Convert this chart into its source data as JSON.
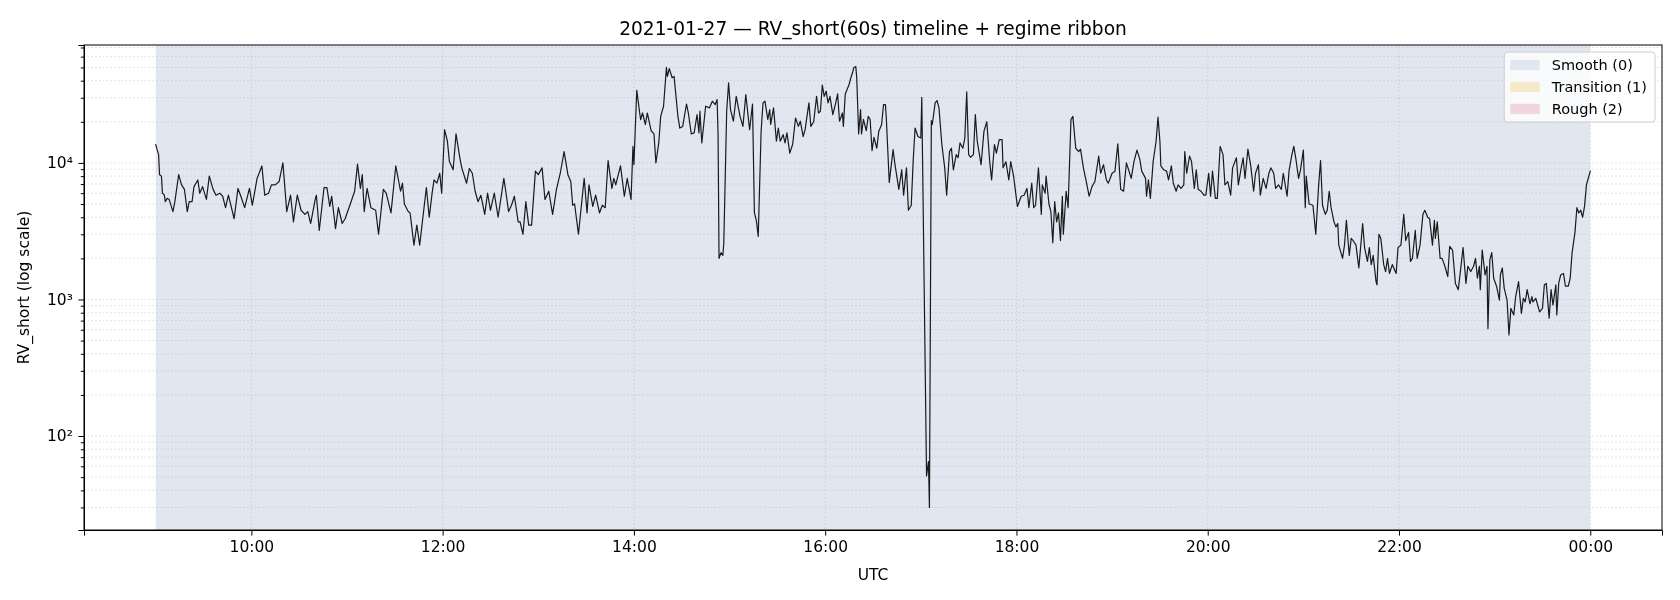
{
  "chart_data": {
    "type": "line",
    "title": "2021-01-27 — RV_short(60s) timeline + regime ribbon",
    "xlabel": "UTC",
    "ylabel": "RV_short (log scale)",
    "log": true,
    "grid": true,
    "legend": "top right",
    "xlim": [
      8.25,
      24.75
    ],
    "xticks": [
      {
        "value": 10,
        "label": "10:00"
      },
      {
        "value": 12,
        "label": "12:00"
      },
      {
        "value": 14,
        "label": "14:00"
      },
      {
        "value": 16,
        "label": "16:00"
      },
      {
        "value": 18,
        "label": "18:00"
      },
      {
        "value": 20,
        "label": "20:00"
      },
      {
        "value": 22,
        "label": "22:00"
      },
      {
        "value": 24,
        "label": "00:00"
      }
    ],
    "ylim": [
      20.5,
      73000
    ],
    "yticks": [
      {
        "value": 30,
        "label": null
      },
      {
        "value": 40,
        "label": null
      },
      {
        "value": 50,
        "label": null
      },
      {
        "value": 60,
        "label": null
      },
      {
        "value": 70,
        "label": null
      },
      {
        "value": 80,
        "label": null
      },
      {
        "value": 90,
        "label": null
      },
      {
        "value": 100,
        "label": "10²"
      },
      {
        "value": 200,
        "label": null
      },
      {
        "value": 300,
        "label": null
      },
      {
        "value": 400,
        "label": null
      },
      {
        "value": 500,
        "label": null
      },
      {
        "value": 600,
        "label": null
      },
      {
        "value": 700,
        "label": null
      },
      {
        "value": 800,
        "label": null
      },
      {
        "value": 900,
        "label": null
      },
      {
        "value": 1000,
        "label": "10³"
      },
      {
        "value": 2000,
        "label": null
      },
      {
        "value": 3000,
        "label": null
      },
      {
        "value": 4000,
        "label": null
      },
      {
        "value": 5000,
        "label": null
      },
      {
        "value": 6000,
        "label": null
      },
      {
        "value": 7000,
        "label": null
      },
      {
        "value": 8000,
        "label": null
      },
      {
        "value": 9000,
        "label": null
      },
      {
        "value": 10000,
        "label": "10⁴"
      },
      {
        "value": 20000,
        "label": null
      },
      {
        "value": 30000,
        "label": null
      },
      {
        "value": 40000,
        "label": null
      },
      {
        "value": 50000,
        "label": null
      },
      {
        "value": 60000,
        "label": null
      },
      {
        "value": 70000,
        "label": null
      }
    ],
    "bands": [
      {
        "axis": "x",
        "from": 9,
        "to": 24,
        "label": "Smooth (0)",
        "color": "#e1e7f1"
      }
    ],
    "x": [
      9.0,
      9.03,
      9.04,
      9.06,
      9.07,
      9.09,
      9.1,
      9.12,
      9.14,
      9.18,
      9.2,
      9.24,
      9.27,
      9.3,
      9.33,
      9.35,
      9.38,
      9.4,
      9.44,
      9.46,
      9.49,
      9.53,
      9.56,
      9.6,
      9.63,
      9.67,
      9.7,
      9.73,
      9.76,
      9.82,
      9.86,
      9.89,
      9.93,
      9.98,
      10.01,
      10.06,
      10.11,
      10.14,
      10.18,
      10.21,
      10.25,
      10.29,
      10.33,
      10.37,
      10.41,
      10.44,
      10.48,
      10.52,
      10.56,
      10.59,
      10.62,
      10.67,
      10.68,
      10.71,
      10.76,
      10.79,
      10.82,
      10.84,
      10.88,
      10.91,
      10.95,
      10.98,
      11.03,
      11.08,
      11.11,
      11.14,
      11.16,
      11.18,
      11.21,
      11.25,
      11.3,
      11.33,
      11.38,
      11.41,
      11.46,
      11.51,
      11.56,
      11.58,
      11.6,
      11.64,
      11.66,
      11.7,
      11.73,
      11.76,
      11.79,
      11.83,
      11.86,
      11.89,
      11.91,
      11.94,
      11.97,
      11.99,
      12.02,
      12.05,
      12.07,
      12.11,
      12.14,
      12.18,
      12.2,
      12.25,
      12.28,
      12.31,
      12.34,
      12.37,
      12.4,
      12.44,
      12.47,
      12.5,
      12.54,
      12.58,
      12.64,
      12.66,
      12.69,
      12.72,
      12.75,
      12.79,
      12.81,
      12.84,
      12.87,
      12.9,
      12.93,
      12.97,
      13.0,
      13.04,
      13.07,
      13.11,
      13.15,
      13.19,
      13.23,
      13.27,
      13.31,
      13.34,
      13.36,
      13.38,
      13.42,
      13.48,
      13.51,
      13.53,
      13.57,
      13.6,
      13.64,
      13.67,
      13.7,
      13.73,
      13.77,
      13.79,
      13.81,
      13.86,
      13.9,
      13.93,
      13.97,
      13.99,
      14.0,
      14.03,
      14.07,
      14.09,
      14.12,
      14.14,
      14.18,
      14.21,
      14.23,
      14.26,
      14.28,
      14.31,
      14.34,
      14.35,
      14.37,
      14.4,
      14.42,
      14.46,
      14.48,
      14.51,
      14.55,
      14.57,
      14.6,
      14.63,
      14.66,
      14.68,
      14.69,
      14.71,
      14.75,
      14.79,
      14.82,
      14.85,
      14.87,
      14.88,
      14.89,
      14.91,
      14.93,
      14.94,
      14.97,
      14.99,
      15.01,
      15.04,
      15.07,
      15.11,
      15.14,
      15.17,
      15.21,
      15.24,
      15.26,
      15.28,
      15.3,
      15.33,
      15.35,
      15.37,
      15.4,
      15.42,
      15.43,
      15.46,
      15.49,
      15.51,
      15.53,
      15.56,
      15.58,
      15.6,
      15.63,
      15.66,
      15.69,
      15.72,
      15.74,
      15.77,
      15.79,
      15.83,
      15.85,
      15.88,
      15.91,
      15.93,
      15.95,
      15.97,
      15.99,
      16.01,
      16.03,
      16.05,
      16.08,
      16.11,
      16.13,
      16.15,
      16.18,
      16.19,
      16.21,
      16.25,
      16.27,
      16.29,
      16.3,
      16.32,
      16.33,
      16.35,
      16.37,
      16.38,
      16.4,
      16.43,
      16.45,
      16.47,
      16.49,
      16.51,
      16.54,
      16.56,
      16.59,
      16.61,
      16.63,
      16.64,
      16.67,
      16.71,
      16.73,
      16.77,
      16.8,
      16.82,
      16.85,
      16.87,
      16.9,
      16.92,
      16.94,
      16.97,
      17.0,
      17.01,
      17.06,
      17.08,
      17.09,
      17.11,
      17.12,
      17.15,
      17.17,
      17.19,
      17.22,
      17.25,
      17.27,
      17.3,
      17.32,
      17.34,
      17.37,
      17.39,
      17.41,
      17.44,
      17.46,
      17.48,
      17.5,
      17.52,
      17.55,
      17.57,
      17.59,
      17.63,
      17.66,
      17.69,
      17.72,
      17.74,
      17.77,
      17.79,
      17.82,
      17.85,
      17.86,
      17.89,
      17.92,
      17.94,
      17.97,
      18.01,
      18.05,
      18.08,
      18.11,
      18.13,
      18.16,
      18.18,
      18.2,
      18.23,
      18.26,
      18.27,
      18.3,
      18.31,
      18.34,
      18.36,
      18.38,
      18.4,
      18.42,
      18.44,
      18.46,
      18.48,
      18.49,
      18.52,
      18.54,
      18.57,
      18.59,
      18.62,
      18.65,
      18.67,
      18.7,
      18.73,
      18.76,
      18.79,
      18.82,
      18.86,
      18.88,
      18.91,
      18.94,
      18.96,
      19.0,
      19.03,
      19.06,
      19.09,
      19.12,
      19.15,
      19.2,
      19.23,
      19.26,
      19.29,
      19.31,
      19.35,
      19.36,
      19.38,
      19.4,
      19.43,
      19.46,
      19.48,
      19.5,
      19.51,
      19.54,
      19.57,
      19.59,
      19.62,
      19.64,
      19.67,
      19.69,
      19.72,
      19.75,
      19.76,
      19.78,
      19.81,
      19.83,
      19.86,
      19.88,
      19.9,
      19.93,
      19.96,
      19.98,
      20.01,
      20.03,
      20.05,
      20.08,
      20.1,
      20.13,
      20.16,
      20.18,
      20.21,
      20.24,
      20.26,
      20.3,
      20.32,
      20.35,
      20.37,
      20.39,
      20.42,
      20.45,
      20.48,
      20.5,
      20.53,
      20.55,
      20.58,
      20.61,
      20.64,
      20.66,
      20.69,
      20.71,
      20.74,
      20.77,
      20.79,
      20.83,
      20.85,
      20.88,
      20.9,
      20.92,
      20.95,
      20.97,
      21.0,
      21.02,
      21.03,
      21.06,
      21.1,
      21.13,
      21.16,
      21.18,
      21.2,
      21.23,
      21.25,
      21.27,
      21.29,
      21.32,
      21.34,
      21.36,
      21.37,
      21.41,
      21.43,
      21.45,
      21.48,
      21.5,
      21.52,
      21.55,
      21.58,
      21.62,
      21.64,
      21.67,
      21.69,
      21.71,
      21.73,
      21.76,
      21.77,
      21.79,
      21.81,
      21.84,
      21.86,
      21.88,
      21.9,
      21.93,
      21.97,
      21.99,
      22.02,
      22.05,
      22.07,
      22.1,
      22.12,
      22.14,
      22.17,
      22.19,
      22.22,
      22.25,
      22.27,
      22.3,
      22.32,
      22.35,
      22.37,
      22.38,
      22.4,
      22.43,
      22.45,
      22.48,
      22.51,
      22.53,
      22.56,
      22.59,
      22.62,
      22.65,
      22.67,
      22.7,
      22.72,
      22.75,
      22.78,
      22.8,
      22.82,
      22.84,
      22.85,
      22.87,
      22.9,
      22.92,
      22.93,
      22.95,
      22.97,
      22.99,
      23.02,
      23.05,
      23.06,
      23.08,
      23.1,
      23.13,
      23.15,
      23.17,
      23.2,
      23.22,
      23.25,
      23.28,
      23.3,
      23.32,
      23.34,
      23.37,
      23.39,
      23.4,
      23.43,
      23.45,
      23.47,
      23.5,
      23.52,
      23.54,
      23.57,
      23.59,
      23.61,
      23.64,
      23.65,
      23.67,
      23.69,
      23.72,
      23.74,
      23.77,
      23.79,
      23.81,
      23.84,
      23.86,
      23.88,
      23.9,
      23.92,
      23.94,
      23.96,
      24.0
    ],
    "series": [
      {
        "color": "#1a1a1a",
        "values": [
          13600,
          11500,
          8200,
          8000,
          6000,
          5800,
          5200,
          5500,
          5400,
          4400,
          5200,
          8200,
          6900,
          6400,
          4400,
          5200,
          5200,
          6700,
          7500,
          6000,
          6700,
          5400,
          8000,
          6400,
          5800,
          6000,
          5700,
          4700,
          5800,
          3900,
          6500,
          5700,
          4700,
          6500,
          4900,
          7700,
          9500,
          5800,
          6000,
          6900,
          6900,
          7300,
          10000,
          4400,
          5800,
          3700,
          5800,
          4500,
          4200,
          4400,
          3600,
          5500,
          5800,
          3200,
          6600,
          6600,
          4800,
          5700,
          3300,
          4700,
          3600,
          3900,
          4900,
          6200,
          9800,
          6500,
          8200,
          4400,
          6500,
          4700,
          4500,
          3000,
          6400,
          6000,
          4300,
          9500,
          6200,
          7100,
          5000,
          4400,
          4300,
          2500,
          3500,
          2500,
          3800,
          6600,
          4000,
          6000,
          7500,
          7100,
          8400,
          6000,
          17500,
          14400,
          10300,
          8900,
          16300,
          10900,
          9200,
          7100,
          9100,
          8400,
          6200,
          5200,
          5800,
          4200,
          6000,
          4500,
          6000,
          4000,
          7700,
          6200,
          4400,
          4900,
          5700,
          3700,
          3700,
          3000,
          5200,
          3500,
          3500,
          8700,
          8200,
          9200,
          5400,
          6200,
          4200,
          6400,
          8400,
          12100,
          8200,
          7300,
          4900,
          5000,
          3000,
          7700,
          4300,
          6900,
          4800,
          5800,
          4300,
          4900,
          4700,
          10400,
          6500,
          7700,
          6900,
          9500,
          5700,
          7700,
          5400,
          13200,
          9700,
          34000,
          20700,
          23200,
          19100,
          23200,
          17200,
          16300,
          10000,
          14000,
          21900,
          26000,
          50000,
          43000,
          49000,
          42000,
          43000,
          22000,
          18000,
          18500,
          27000,
          23000,
          16300,
          16600,
          22600,
          16600,
          23900,
          14000,
          26000,
          25300,
          28300,
          26700,
          29100,
          16100,
          2000,
          2200,
          2100,
          2600,
          23900,
          38500,
          24600,
          20200,
          30700,
          21900,
          18500,
          31600,
          17500,
          27000,
          4300,
          3800,
          2900,
          17000,
          27500,
          28300,
          20800,
          24600,
          19100,
          25300,
          14400,
          18000,
          14400,
          16100,
          14000,
          16600,
          11800,
          13700,
          21300,
          18500,
          20200,
          15600,
          17500,
          27500,
          18500,
          20000,
          30700,
          23200,
          23900,
          37100,
          30700,
          33500,
          27500,
          30700,
          22600,
          27500,
          32000,
          20200,
          23200,
          18500,
          32000,
          37500,
          42400,
          46900,
          50000,
          50800,
          41900,
          16300,
          24600,
          16300,
          20800,
          17200,
          21900,
          20800,
          12300,
          15400,
          12800,
          17000,
          19100,
          26700,
          26700,
          20800,
          7200,
          12500,
          9700,
          6400,
          8900,
          5800,
          9200,
          4500,
          4900,
          10300,
          18000,
          15600,
          15200,
          30200,
          51,
          65,
          30,
          20400,
          19100,
          27500,
          28600,
          25300,
          13600,
          9200,
          5800,
          12100,
          12800,
          8900,
          11500,
          10900,
          14000,
          12800,
          15200,
          33100,
          11500,
          11000,
          11500,
          22600,
          14400,
          9700,
          17000,
          20000,
          10300,
          7500,
          13600,
          11800,
          14800,
          14800,
          9200,
          10200,
          7500,
          10200,
          8000,
          4800,
          5700,
          5800,
          6500,
          4700,
          7100,
          4700,
          4900,
          9200,
          4200,
          6900,
          6000,
          8000,
          5000,
          4400,
          2600,
          5200,
          3700,
          4300,
          2700,
          5700,
          3000,
          6200,
          4700,
          20800,
          21900,
          12800,
          12100,
          12600,
          9200,
          7300,
          5700,
          6700,
          7300,
          11200,
          8400,
          9700,
          7500,
          7100,
          8400,
          8700,
          13800,
          6400,
          6200,
          10000,
          7700,
          10300,
          12400,
          10600,
          8700,
          7700,
          5700,
          7500,
          5500,
          10300,
          14400,
          21600,
          14400,
          9500,
          8900,
          8700,
          7500,
          9500,
          7100,
          6200,
          6900,
          6500,
          6900,
          12100,
          8400,
          11200,
          10300,
          6500,
          8900,
          6400,
          6200,
          5800,
          5800,
          8400,
          5700,
          8700,
          5500,
          5500,
          13200,
          11500,
          6900,
          7300,
          5800,
          9200,
          10900,
          6900,
          9200,
          10900,
          7700,
          12600,
          9500,
          6200,
          8400,
          9700,
          5800,
          7700,
          6500,
          8400,
          9200,
          8400,
          6500,
          6900,
          6400,
          8400,
          5700,
          8700,
          11500,
          13200,
          10900,
          7700,
          8900,
          12400,
          4700,
          8000,
          5000,
          4900,
          3000,
          6900,
          10400,
          4900,
          4200,
          4500,
          6200,
          4700,
          3700,
          3400,
          3600,
          2500,
          2000,
          2500,
          3800,
          2100,
          2800,
          2700,
          2500,
          1700,
          3600,
          2400,
          1900,
          2400,
          1800,
          2100,
          1350,
          1280,
          3000,
          2800,
          1800,
          1600,
          2000,
          1550,
          1800,
          1550,
          2400,
          2500,
          4200,
          2700,
          3100,
          1900,
          2000,
          3200,
          2000,
          2500,
          4200,
          4500,
          4000,
          3900,
          2500,
          3800,
          2800,
          3700,
          2000,
          2000,
          1750,
          1470,
          2450,
          2300,
          1310,
          1180,
          1800,
          2400,
          1310,
          1750,
          1600,
          1750,
          2000,
          1430,
          1750,
          1180,
          2300,
          1510,
          1750,
          610,
          1950,
          2200,
          1430,
          1250,
          990,
          1510,
          1700,
          1210,
          990,
          550,
          860,
          770,
          1050,
          1350,
          790,
          1020,
          960,
          1180,
          930,
          1050,
          960,
          1020,
          910,
          810,
          860,
          1280,
          1310,
          730,
          1180,
          910,
          1280,
          770,
          1310,
          1510,
          1550,
          1250,
          1250,
          1430,
          2200,
          3100,
          4700,
          4300,
          4500,
          4000,
          4800,
          6900,
          8700
        ]
      },
      {
        "type": "area",
        "name": "Transition (1)",
        "color": "#f6e9cb",
        "values": [
          null,
          null,
          null,
          null,
          null,
          null,
          null,
          null,
          null,
          null,
          null,
          null,
          null,
          null,
          null,
          null,
          null,
          null,
          null,
          null,
          null,
          null,
          null,
          null,
          null,
          null,
          null,
          null,
          null,
          null,
          null,
          null,
          null,
          null,
          null,
          null,
          null,
          null,
          null,
          null,
          null,
          null,
          null,
          null,
          null,
          null,
          null,
          null,
          null,
          null,
          null,
          null,
          null,
          null,
          null,
          null,
          null,
          null,
          null,
          null,
          null,
          null,
          null,
          null,
          null,
          null,
          null,
          null,
          null,
          null,
          null,
          null,
          null,
          null,
          null,
          null,
          null,
          null,
          null,
          null,
          null,
          null,
          null,
          null,
          null,
          null,
          null,
          null,
          null,
          null,
          null,
          null,
          null,
          null,
          null,
          null,
          null,
          null,
          null,
          null,
          null,
          null,
          null,
          null,
          null,
          null,
          null,
          null,
          null,
          null,
          null,
          null,
          null,
          null,
          null,
          null,
          null,
          null,
          null,
          null,
          null,
          null,
          null,
          null,
          null,
          null,
          null,
          null,
          null,
          null,
          null,
          null,
          null,
          null,
          null,
          null,
          null,
          null,
          null,
          null,
          null,
          null,
          null,
          null,
          null,
          null,
          null,
          null,
          null,
          null,
          null,
          null,
          null,
          null,
          null,
          null,
          null,
          null,
          null,
          null,
          null,
          null,
          null,
          null,
          null,
          null,
          null,
          null,
          null,
          null,
          null,
          null,
          null,
          null,
          null,
          null,
          null,
          null,
          null,
          null,
          null,
          null,
          null,
          null,
          null,
          null,
          null,
          null,
          null,
          null,
          null,
          null,
          null,
          null,
          null,
          null,
          null,
          null,
          null,
          null,
          null,
          null,
          null,
          null,
          null,
          null,
          null,
          null,
          null,
          null,
          null,
          null,
          null,
          null,
          null,
          null,
          null,
          null,
          null,
          null,
          null,
          null,
          null,
          null,
          null,
          null,
          null,
          null,
          null,
          null,
          null,
          null,
          null,
          null,
          null,
          null,
          null,
          null,
          null,
          null,
          null,
          null,
          null,
          null,
          null,
          null,
          null,
          null,
          null,
          null,
          null,
          null,
          null,
          null,
          null,
          null,
          null,
          null,
          null,
          null,
          null,
          null,
          null,
          null,
          null,
          null,
          null,
          null,
          null,
          null,
          null,
          null,
          null,
          null,
          null,
          null,
          null,
          null,
          null,
          null,
          null,
          null,
          null,
          null,
          null,
          null,
          null,
          null,
          null,
          null,
          null,
          null,
          null,
          null,
          null,
          null,
          null,
          null,
          null,
          null,
          null,
          null,
          null,
          null,
          null,
          null,
          null,
          null,
          null,
          null,
          null,
          null,
          null,
          null,
          null,
          null,
          null,
          null,
          null,
          null,
          null,
          null,
          null,
          null,
          null,
          null,
          null,
          null,
          null,
          null,
          null,
          null,
          null,
          null,
          null,
          null,
          null,
          null,
          null,
          null,
          null,
          null,
          null,
          null,
          null,
          null,
          null,
          null,
          null,
          null,
          null,
          null,
          null,
          null,
          null,
          null,
          null,
          null,
          null,
          null,
          null,
          null,
          null,
          null,
          null,
          null,
          null,
          null,
          null,
          null,
          null,
          null,
          null,
          null,
          null,
          null,
          null,
          null,
          null,
          null,
          null,
          null,
          null,
          null,
          null,
          null,
          null,
          null,
          null,
          null,
          null,
          null,
          null,
          null,
          null,
          null,
          null,
          null,
          null,
          null,
          null,
          null,
          null,
          null,
          null,
          null,
          null,
          null,
          null,
          null,
          null,
          null,
          null,
          null,
          null,
          null,
          null,
          null,
          null,
          null,
          null,
          null,
          null,
          null,
          null,
          null,
          null,
          null,
          null,
          null,
          null,
          null,
          null,
          null,
          null,
          null,
          null,
          null,
          null,
          null,
          null,
          null,
          null,
          null,
          null,
          null,
          null,
          null,
          null,
          null,
          null,
          null,
          null,
          null,
          null,
          null,
          null,
          null,
          null,
          null,
          null,
          null,
          null,
          null,
          null,
          null,
          null,
          null,
          null,
          null,
          null,
          null,
          null,
          null,
          null,
          null,
          null,
          null,
          null,
          null,
          null,
          null,
          null,
          null,
          null,
          null,
          null,
          null,
          null,
          null,
          null,
          null,
          null,
          null,
          null,
          null,
          null,
          null,
          null,
          null,
          null,
          null,
          null,
          null,
          null,
          null,
          null,
          null,
          null,
          null,
          null,
          null,
          null,
          null,
          null,
          null,
          null,
          null,
          null,
          null,
          null,
          null,
          null,
          null,
          null,
          null,
          null,
          null,
          null,
          null,
          null,
          null,
          null,
          null,
          null,
          null,
          null,
          null,
          null,
          null,
          null,
          null,
          null,
          null,
          null,
          null,
          null,
          null,
          null,
          null,
          null,
          null,
          null,
          null,
          null,
          null,
          null,
          null,
          null
        ]
      },
      {
        "type": "area",
        "name": "Rough (2)",
        "color": "#f1d6de",
        "values": [
          null,
          null,
          null,
          null,
          null,
          null,
          null,
          null,
          null,
          null,
          null,
          null,
          null,
          null,
          null,
          null,
          null,
          null,
          null,
          null,
          null,
          null,
          null,
          null,
          null,
          null,
          null,
          null,
          null,
          null,
          null,
          null,
          null,
          null,
          null,
          null,
          null,
          null,
          null,
          null,
          null,
          null,
          null,
          null,
          null,
          null,
          null,
          null,
          null,
          null,
          null,
          null,
          null,
          null,
          null,
          null,
          null,
          null,
          null,
          null,
          null,
          null,
          null,
          null,
          null,
          null,
          null,
          null,
          null,
          null,
          null,
          null,
          null,
          null,
          null,
          null,
          null,
          null,
          null,
          null,
          null,
          null,
          null,
          null,
          null,
          null,
          null,
          null,
          null,
          null,
          null,
          null,
          null,
          null,
          null,
          null,
          null,
          null,
          null,
          null,
          null,
          null,
          null,
          null,
          null,
          null,
          null,
          null,
          null,
          null,
          null,
          null,
          null,
          null,
          null,
          null,
          null,
          null,
          null,
          null,
          null,
          null,
          null,
          null,
          null,
          null,
          null,
          null,
          null,
          null,
          null,
          null,
          null,
          null,
          null,
          null,
          null,
          null,
          null,
          null,
          null,
          null,
          null,
          null,
          null,
          null,
          null,
          null,
          null,
          null,
          null,
          null,
          null,
          null,
          null,
          null,
          null,
          null,
          null,
          null,
          null,
          null,
          null,
          null,
          null,
          null,
          null,
          null,
          null,
          null,
          null,
          null,
          null,
          null,
          null,
          null,
          null,
          null,
          null,
          null,
          null,
          null,
          null,
          null,
          null,
          null,
          null,
          null,
          null,
          null,
          null,
          null,
          null,
          null,
          null,
          null,
          null,
          null,
          null,
          null,
          null,
          null,
          null,
          null,
          null,
          null,
          null,
          null,
          null,
          null,
          null,
          null,
          null,
          null,
          null,
          null,
          null,
          null,
          null,
          null,
          null,
          null,
          null,
          null,
          null,
          null,
          null,
          null,
          null,
          null,
          null,
          null,
          null,
          null,
          null,
          null,
          null,
          null,
          null,
          null,
          null,
          null,
          null,
          null,
          null,
          null,
          null,
          null,
          null,
          null,
          null,
          null,
          null,
          null,
          null,
          null,
          null,
          null,
          null,
          null,
          null,
          null,
          null,
          null,
          null,
          null,
          null,
          null,
          null,
          null,
          null,
          null,
          null,
          null,
          null,
          null,
          null,
          null,
          null,
          null,
          null,
          null,
          null,
          null,
          null,
          null,
          null,
          null,
          null,
          null,
          null,
          null,
          null,
          null,
          null,
          null,
          null,
          null,
          null,
          null,
          null,
          null,
          null,
          null,
          null,
          null,
          null,
          null,
          null,
          null,
          null,
          null,
          null,
          null,
          null,
          null,
          null,
          null,
          null,
          null,
          null,
          null,
          null,
          null,
          null,
          null,
          null,
          null,
          null,
          null,
          null,
          null,
          null,
          null,
          null,
          null,
          null,
          null,
          null,
          null,
          null,
          null,
          null,
          null,
          null,
          null,
          null,
          null,
          null,
          null,
          null,
          null,
          null,
          null,
          null,
          null,
          null,
          null,
          null,
          null,
          null,
          null,
          null,
          null,
          null,
          null,
          null,
          null,
          null,
          null,
          null,
          null,
          null,
          null,
          null,
          null,
          null,
          null,
          null,
          null,
          null,
          null,
          null,
          null,
          null,
          null,
          null,
          null,
          null,
          null,
          null,
          null,
          null,
          null,
          null,
          null,
          null,
          null,
          null,
          null,
          null,
          null,
          null,
          null,
          null,
          null,
          null,
          null,
          null,
          null,
          null,
          null,
          null,
          null,
          null,
          null,
          null,
          null,
          null,
          null,
          null,
          null,
          null,
          null,
          null,
          null,
          null,
          null,
          null,
          null,
          null,
          null,
          null,
          null,
          null,
          null,
          null,
          null,
          null,
          null,
          null,
          null,
          null,
          null,
          null,
          null,
          null,
          null,
          null,
          null,
          null,
          null,
          null,
          null,
          null,
          null,
          null,
          null,
          null,
          null,
          null,
          null,
          null,
          null,
          null,
          null,
          null,
          null,
          null,
          null,
          null,
          null,
          null,
          null,
          null,
          null,
          null,
          null,
          null,
          null,
          null,
          null,
          null,
          null,
          null,
          null,
          null,
          null,
          null,
          null,
          null,
          null,
          null,
          null,
          null,
          null,
          null,
          null,
          null,
          null,
          null,
          null,
          null,
          null,
          null,
          null,
          null,
          null,
          null,
          null,
          null,
          null,
          null,
          null,
          null,
          null,
          null,
          null,
          null,
          null,
          null,
          null,
          null,
          null,
          null,
          null,
          null,
          null,
          null,
          null,
          null,
          null,
          null,
          null,
          null,
          null,
          null,
          null,
          null,
          null,
          null,
          null,
          null,
          null,
          null,
          null,
          null,
          null,
          null,
          null,
          null,
          null,
          null,
          null,
          null,
          null,
          null,
          null,
          null
        ]
      }
    ]
  }
}
